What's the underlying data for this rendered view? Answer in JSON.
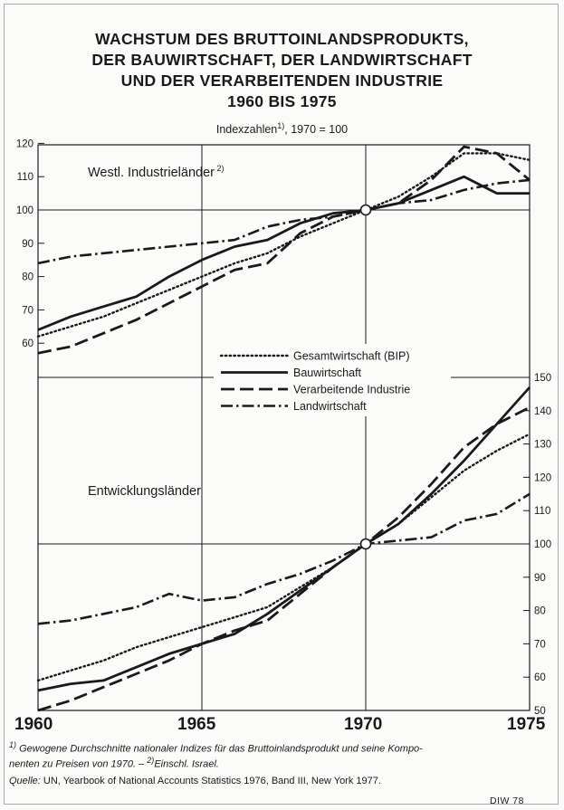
{
  "header": {
    "title_lines": [
      "WACHSTUM DES BRUTTOINLANDSPRODUKTS,",
      "DER BAUWIRTSCHAFT, DER LANDWIRTSCHAFT",
      "UND DER VERARBEITENDEN INDUSTRIE",
      "1960 BIS 1975"
    ],
    "subtitle": "Indexzahlen",
    "subtitle_ref": "1)",
    "subtitle_rest": ", 1970 = 100"
  },
  "footnotes": {
    "note1_ref": "1)",
    "note1_line1": "Gewogene Durchschnitte nationaler Indizes für das Bruttoinlandsprodukt und seine Kompo-",
    "note1_line2": "nenten zu Preisen von 1970. –",
    "note2_ref": "2)",
    "note2_text": "Einschl. Israel.",
    "source_label": "Quelle:",
    "source_text": "UN, Yearbook of National Accounts Statistics 1976, Band III, New York 1977.",
    "code": "DIW 78"
  },
  "chart_data": [
    {
      "type": "line",
      "title": "Westl. Industrieländer",
      "title_ref": "2)",
      "x_ticks": [
        "1960",
        "1965",
        "1970",
        "1975"
      ],
      "y_ticks": [
        "60",
        "70",
        "80",
        "90",
        "100",
        "110",
        "120"
      ],
      "ylim": [
        55,
        120
      ],
      "xlim": [
        1960,
        1975
      ],
      "y_axis": "left",
      "legend_position": "center",
      "series": [
        {
          "name": "Gesamtwirtschaft (BIP)",
          "style": "dotted",
          "x": [
            1960,
            1961,
            1962,
            1963,
            1964,
            1965,
            1966,
            1967,
            1968,
            1969,
            1970,
            1971,
            1972,
            1973,
            1974,
            1975
          ],
          "values": [
            62,
            65,
            68,
            72,
            76,
            80,
            84,
            87,
            92,
            96,
            100,
            104,
            110,
            117,
            117,
            115
          ]
        },
        {
          "name": "Bauwirtschaft",
          "style": "solid",
          "x": [
            1960,
            1961,
            1962,
            1963,
            1964,
            1965,
            1966,
            1967,
            1968,
            1969,
            1970,
            1971,
            1972,
            1973,
            1974,
            1975
          ],
          "values": [
            64,
            68,
            71,
            74,
            80,
            85,
            89,
            91,
            96,
            99,
            100,
            102,
            106,
            110,
            105,
            105
          ]
        },
        {
          "name": "Verarbeitende Industrie",
          "style": "dashed",
          "x": [
            1960,
            1961,
            1962,
            1963,
            1964,
            1965,
            1966,
            1967,
            1968,
            1969,
            1970,
            1971,
            1972,
            1973,
            1974,
            1975
          ],
          "values": [
            57,
            59,
            63,
            67,
            72,
            77,
            82,
            84,
            93,
            98,
            100,
            102,
            109,
            119,
            117,
            109
          ]
        },
        {
          "name": "Landwirtschaft",
          "style": "dashdot",
          "x": [
            1960,
            1961,
            1962,
            1963,
            1964,
            1965,
            1966,
            1967,
            1968,
            1969,
            1970,
            1971,
            1972,
            1973,
            1974,
            1975
          ],
          "values": [
            84,
            86,
            87,
            88,
            89,
            90,
            91,
            95,
            97,
            98,
            100,
            102,
            103,
            106,
            108,
            109
          ]
        }
      ]
    },
    {
      "type": "line",
      "title": "Entwicklungsländer",
      "x_ticks": [
        "1960",
        "1965",
        "1970",
        "1975"
      ],
      "y_ticks": [
        "50",
        "60",
        "70",
        "80",
        "90",
        "100",
        "110",
        "120",
        "130",
        "140",
        "150"
      ],
      "ylim": [
        50,
        150
      ],
      "xlim": [
        1960,
        1975
      ],
      "y_axis": "right",
      "series": [
        {
          "name": "Gesamtwirtschaft (BIP)",
          "style": "dotted",
          "x": [
            1960,
            1961,
            1962,
            1963,
            1964,
            1965,
            1966,
            1967,
            1968,
            1969,
            1970,
            1971,
            1972,
            1973,
            1974,
            1975
          ],
          "values": [
            59,
            62,
            65,
            69,
            72,
            75,
            78,
            81,
            87,
            93,
            100,
            106,
            114,
            122,
            128,
            133
          ]
        },
        {
          "name": "Bauwirtschaft",
          "style": "solid",
          "x": [
            1960,
            1961,
            1962,
            1963,
            1964,
            1965,
            1966,
            1967,
            1968,
            1969,
            1970,
            1971,
            1972,
            1973,
            1974,
            1975
          ],
          "values": [
            56,
            58,
            59,
            63,
            67,
            70,
            73,
            79,
            86,
            93,
            100,
            106,
            115,
            125,
            136,
            147
          ]
        },
        {
          "name": "Verarbeitende Industrie",
          "style": "dashed",
          "x": [
            1960,
            1961,
            1962,
            1963,
            1964,
            1965,
            1966,
            1967,
            1968,
            1969,
            1970,
            1971,
            1972,
            1973,
            1974,
            1975
          ],
          "values": [
            50,
            53,
            57,
            61,
            65,
            70,
            74,
            77,
            85,
            93,
            100,
            108,
            118,
            129,
            136,
            141
          ]
        },
        {
          "name": "Landwirtschaft",
          "style": "dashdot",
          "x": [
            1960,
            1961,
            1962,
            1963,
            1964,
            1965,
            1966,
            1967,
            1968,
            1969,
            1970,
            1971,
            1972,
            1973,
            1974,
            1975
          ],
          "values": [
            76,
            77,
            79,
            81,
            85,
            83,
            84,
            88,
            91,
            95,
            100,
            101,
            102,
            107,
            109,
            115
          ]
        }
      ]
    }
  ]
}
